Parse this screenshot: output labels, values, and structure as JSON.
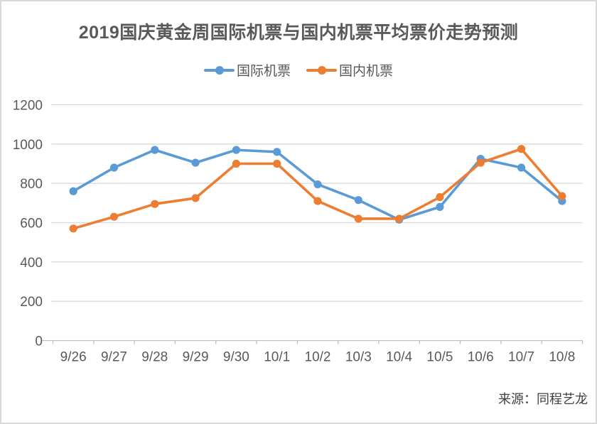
{
  "title": "2019国庆黄金周国际机票与国内机票平均票价走势预测",
  "source": "来源：同程艺龙",
  "legend": [
    {
      "label": "国际机票",
      "color": "#5B9BD5"
    },
    {
      "label": "国内机票",
      "color": "#ED7D31"
    }
  ],
  "colors": {
    "title_text": "#595959",
    "axis_label_text": "#595959",
    "gridline": "#d9d9d9",
    "axis_line": "#bfbfbf",
    "source_text": "#404040",
    "card_border": "#d9d9d9"
  },
  "chart_data": {
    "type": "line",
    "title": "2019国庆黄金周国际机票与国内机票平均票价走势预测",
    "categories": [
      "9/26",
      "9/27",
      "9/28",
      "9/29",
      "9/30",
      "10/1",
      "10/2",
      "10/3",
      "10/4",
      "10/5",
      "10/6",
      "10/7",
      "10/8"
    ],
    "series": [
      {
        "name": "国际机票",
        "color": "#5B9BD5",
        "values": [
          760,
          880,
          970,
          905,
          970,
          960,
          795,
          715,
          615,
          680,
          925,
          880,
          710
        ]
      },
      {
        "name": "国内机票",
        "color": "#ED7D31",
        "values": [
          570,
          630,
          695,
          725,
          900,
          900,
          710,
          620,
          620,
          730,
          905,
          975,
          735
        ]
      }
    ],
    "xlabel": "",
    "ylabel": "",
    "ylim": [
      0,
      1200
    ],
    "ytick_step": 200,
    "grid": true,
    "legend_position": "top",
    "annotations": [
      "来源：同程艺龙"
    ]
  }
}
